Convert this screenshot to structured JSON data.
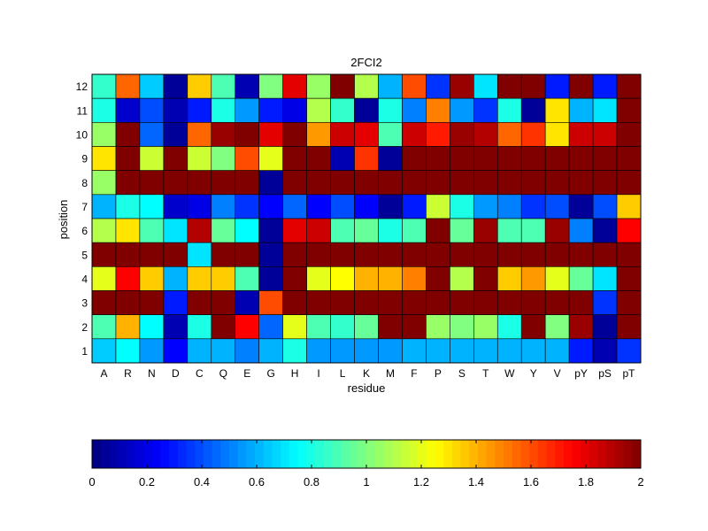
{
  "chart_data": {
    "type": "heatmap",
    "title": "2FCI2",
    "xlabel": "residue",
    "ylabel": "position",
    "x_categories": [
      "A",
      "R",
      "N",
      "D",
      "C",
      "Q",
      "E",
      "G",
      "H",
      "I",
      "L",
      "K",
      "M",
      "F",
      "P",
      "S",
      "T",
      "W",
      "Y",
      "V",
      "pY",
      "pS",
      "pT"
    ],
    "y_categories": [
      "12",
      "11",
      "10",
      "9",
      "8",
      "7",
      "6",
      "5",
      "4",
      "3",
      "2",
      "1"
    ],
    "values": [
      [
        0.85,
        1.55,
        0.65,
        0.05,
        1.35,
        0.9,
        0.1,
        1.0,
        1.8,
        1.05,
        2.0,
        1.1,
        0.6,
        1.6,
        0.35,
        1.95,
        0.7,
        2.0,
        2.0,
        0.3,
        2.0,
        0.3,
        2.0
      ],
      [
        0.8,
        0.15,
        0.4,
        0.1,
        0.3,
        0.8,
        0.55,
        0.3,
        0.2,
        1.1,
        0.85,
        0.05,
        0.8,
        0.5,
        1.5,
        0.55,
        0.35,
        0.8,
        0.05,
        1.3,
        0.6,
        0.7,
        2.0
      ],
      [
        1.05,
        2.0,
        0.45,
        0.05,
        1.55,
        1.95,
        2.0,
        1.8,
        2.0,
        1.45,
        1.85,
        1.8,
        0.9,
        1.85,
        1.7,
        1.95,
        1.9,
        1.55,
        1.65,
        1.3,
        1.85,
        1.85,
        2.0
      ],
      [
        1.3,
        2.0,
        1.15,
        2.0,
        1.15,
        1.0,
        1.6,
        1.2,
        2.0,
        2.0,
        0.1,
        1.65,
        0.05,
        2.0,
        2.0,
        2.0,
        2.0,
        2.0,
        2.0,
        2.0,
        2.0,
        2.0,
        2.0
      ],
      [
        1.05,
        2.0,
        2.0,
        2.0,
        2.0,
        2.0,
        2.0,
        0.05,
        2.0,
        2.0,
        2.0,
        2.0,
        2.0,
        2.0,
        2.0,
        2.0,
        2.0,
        2.0,
        2.0,
        2.0,
        2.0,
        2.0,
        2.0
      ],
      [
        0.6,
        0.8,
        0.75,
        0.15,
        0.2,
        0.5,
        0.35,
        0.25,
        0.45,
        0.25,
        0.4,
        0.25,
        0.05,
        0.3,
        1.15,
        0.8,
        0.55,
        0.5,
        0.35,
        0.4,
        0.05,
        0.4,
        1.35
      ],
      [
        1.1,
        1.3,
        0.9,
        0.7,
        1.9,
        0.95,
        0.75,
        0.05,
        1.8,
        1.85,
        0.9,
        0.95,
        0.8,
        0.9,
        2.0,
        0.95,
        1.95,
        0.9,
        0.9,
        1.95,
        0.5,
        0.05,
        1.75
      ],
      [
        2.0,
        2.0,
        2.0,
        2.0,
        0.7,
        2.0,
        2.0,
        0.05,
        2.0,
        2.0,
        2.0,
        2.0,
        2.0,
        2.0,
        2.0,
        2.0,
        2.0,
        2.0,
        2.0,
        2.0,
        2.0,
        2.0,
        2.0
      ],
      [
        1.2,
        1.75,
        1.35,
        0.6,
        1.35,
        1.35,
        0.9,
        0.05,
        2.0,
        1.2,
        1.25,
        1.4,
        1.4,
        1.5,
        2.0,
        1.1,
        2.0,
        1.35,
        1.45,
        1.2,
        0.95,
        0.7,
        2.0
      ],
      [
        2.0,
        2.0,
        2.0,
        0.3,
        2.0,
        2.0,
        0.1,
        1.6,
        2.0,
        2.0,
        2.0,
        2.0,
        2.0,
        2.0,
        2.0,
        2.0,
        2.0,
        2.0,
        2.0,
        2.0,
        2.0,
        0.35,
        2.0
      ],
      [
        0.9,
        1.4,
        0.75,
        0.1,
        0.8,
        2.0,
        1.75,
        0.45,
        1.2,
        0.9,
        0.85,
        0.95,
        2.0,
        2.0,
        1.05,
        1.0,
        1.05,
        0.8,
        2.0,
        1.0,
        1.95,
        0.05,
        2.0
      ],
      [
        0.65,
        0.75,
        0.55,
        0.25,
        0.6,
        0.6,
        0.5,
        0.6,
        0.8,
        0.55,
        0.55,
        0.55,
        0.55,
        0.6,
        0.6,
        0.6,
        0.6,
        0.6,
        0.6,
        0.6,
        0.3,
        0.1,
        0.35
      ]
    ],
    "colormap": "jet",
    "clim": [
      0,
      2
    ],
    "colorbar": {
      "placement": "bottom",
      "ticks": [
        "0",
        "0.2",
        "0.4",
        "0.6",
        "0.8",
        "1",
        "1.2",
        "1.4",
        "1.6",
        "1.8",
        "2"
      ]
    }
  }
}
